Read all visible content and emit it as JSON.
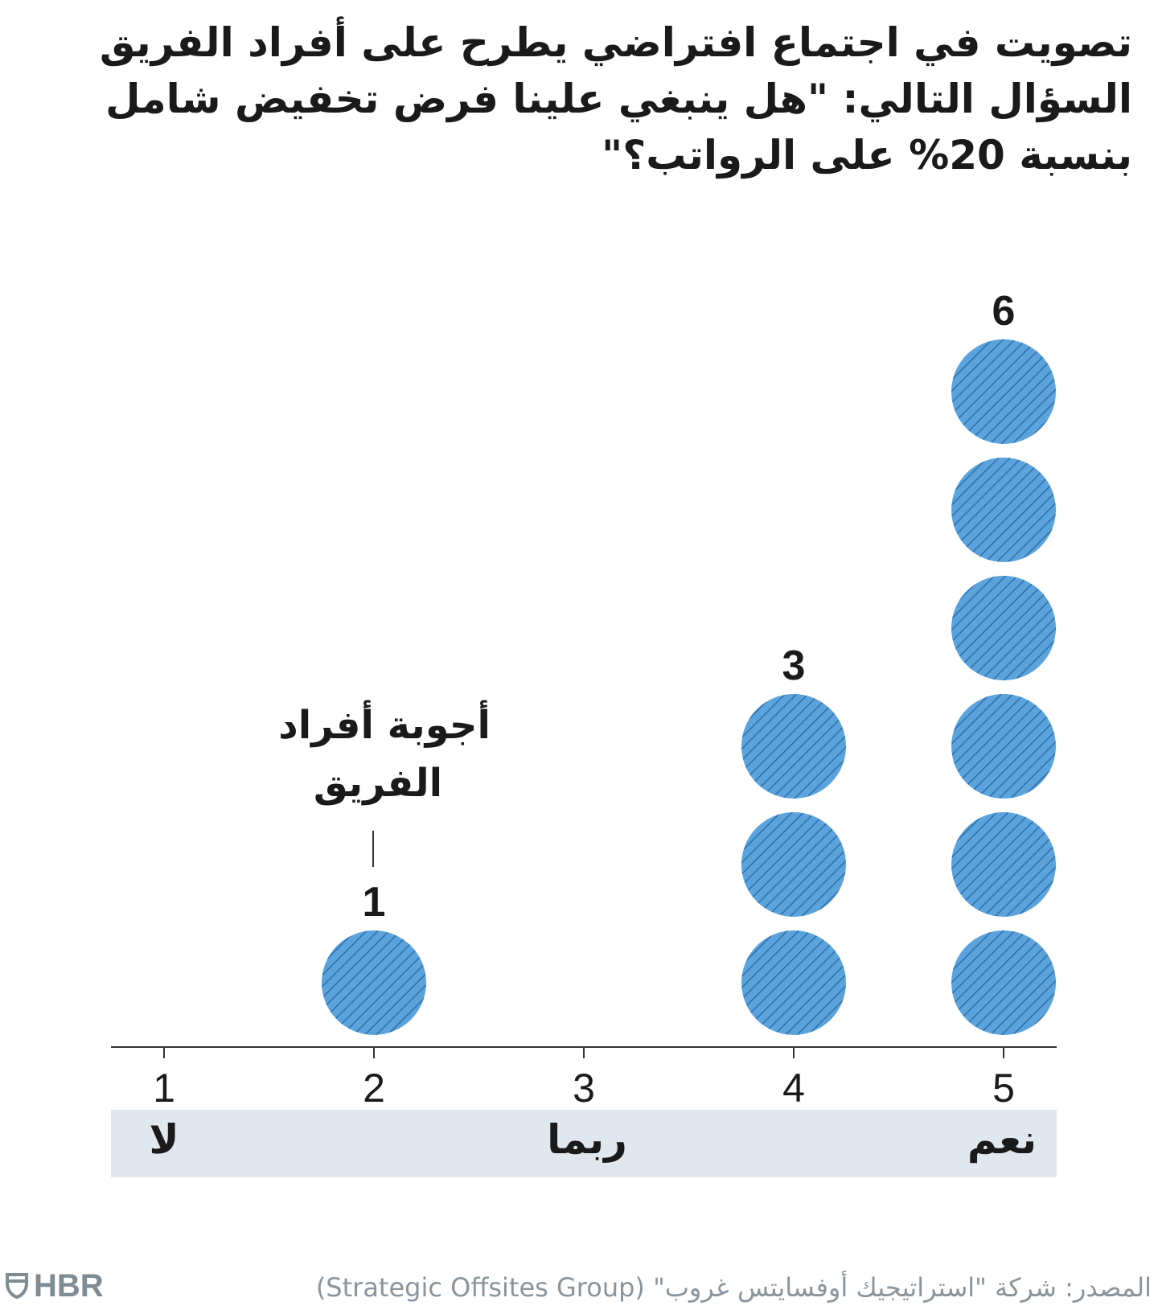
{
  "title": "تصويت في اجتماع افتراضي يطرح على أفراد الفريق السؤال التالي: \"هل ينبغي علينا فرض تخفيض شامل بنسبة 20% على الرواتب؟\"",
  "annotation": {
    "lines": [
      "أجوبة أفراد",
      "الفريق"
    ]
  },
  "scale_labels": {
    "low": "لا",
    "mid": "ربما",
    "high": "نعم"
  },
  "source": "المصدر: شركة \"استراتيجيك أوفسايتس غروب\" (Strategic Offsites Group)",
  "logo": {
    "icon": "hbr-shield-icon",
    "text": "HBR"
  },
  "colors": {
    "dot_fill": "#5aa3dc",
    "dot_hatch": "#2f6fa8",
    "band": "#e1e7ef",
    "axis": "#333333"
  },
  "chart_data": {
    "type": "dot-column",
    "x": [
      1,
      2,
      3,
      4,
      5
    ],
    "tick_labels": [
      "1",
      "2",
      "3",
      "4",
      "5"
    ],
    "values": [
      0,
      1,
      0,
      3,
      6
    ],
    "value_labels": [
      "",
      "1",
      "",
      "3",
      "6"
    ],
    "xlim": [
      1,
      5
    ],
    "grid": false
  }
}
